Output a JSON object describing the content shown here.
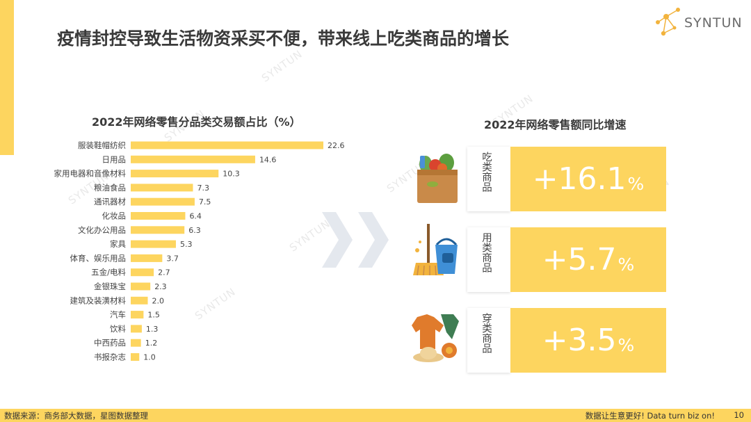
{
  "header": {
    "title": "疫情封控导致生活物资采买不便，带来线上吃类商品的增长",
    "logo_text": "SYNTUN",
    "watermark": "SYNTUN"
  },
  "chart_data": [
    {
      "type": "bar",
      "orientation": "horizontal",
      "title": "2022年网络零售分品类交易额占比（%）",
      "categories": [
        "服装鞋帽纺织",
        "日用品",
        "家用电器和音像材料",
        "粮油食品",
        "通讯器材",
        "化妆品",
        "文化办公用品",
        "家具",
        "体育、娱乐用品",
        "五金/电料",
        "金银珠宝",
        "建筑及装潢材料",
        "汽车",
        "饮料",
        "中西药品",
        "书报杂志"
      ],
      "values": [
        22.6,
        14.6,
        10.3,
        7.3,
        7.5,
        6.4,
        6.3,
        5.3,
        3.7,
        2.7,
        2.3,
        2.0,
        1.5,
        1.3,
        1.2,
        1.0
      ],
      "value_labels": [
        "22.6",
        "14.6",
        "10.3",
        "7.3",
        "7.5",
        "6.4",
        "6.3",
        "5.3",
        "3.7",
        "2.7",
        "2.3",
        "2.0",
        "1.5",
        "1.3",
        "1.2",
        "1.0"
      ],
      "color": "#fdd55f",
      "xlim": [
        0,
        25
      ],
      "grid": false,
      "legend": "none"
    },
    {
      "type": "table",
      "title": "2022年网络零售额同比增速",
      "rows": [
        {
          "category": "吃类商品",
          "value": 16.1,
          "display": "+16.1",
          "unit": "%",
          "icon": "food-basket-icon"
        },
        {
          "category": "用类商品",
          "value": 5.7,
          "display": "+5.7",
          "unit": "%",
          "icon": "cleaning-supplies-icon"
        },
        {
          "category": "穿类商品",
          "value": 3.5,
          "display": "+3.5",
          "unit": "%",
          "icon": "clothing-icon"
        }
      ]
    }
  ],
  "footer": {
    "source": "数据来源：商务部大数据，星图数据整理",
    "slogan": "数据让生意更好! Data turn biz on!",
    "page": "10"
  },
  "colors": {
    "accent": "#fdd55f",
    "bar_label": "#444444",
    "title": "#3a3a3a"
  }
}
